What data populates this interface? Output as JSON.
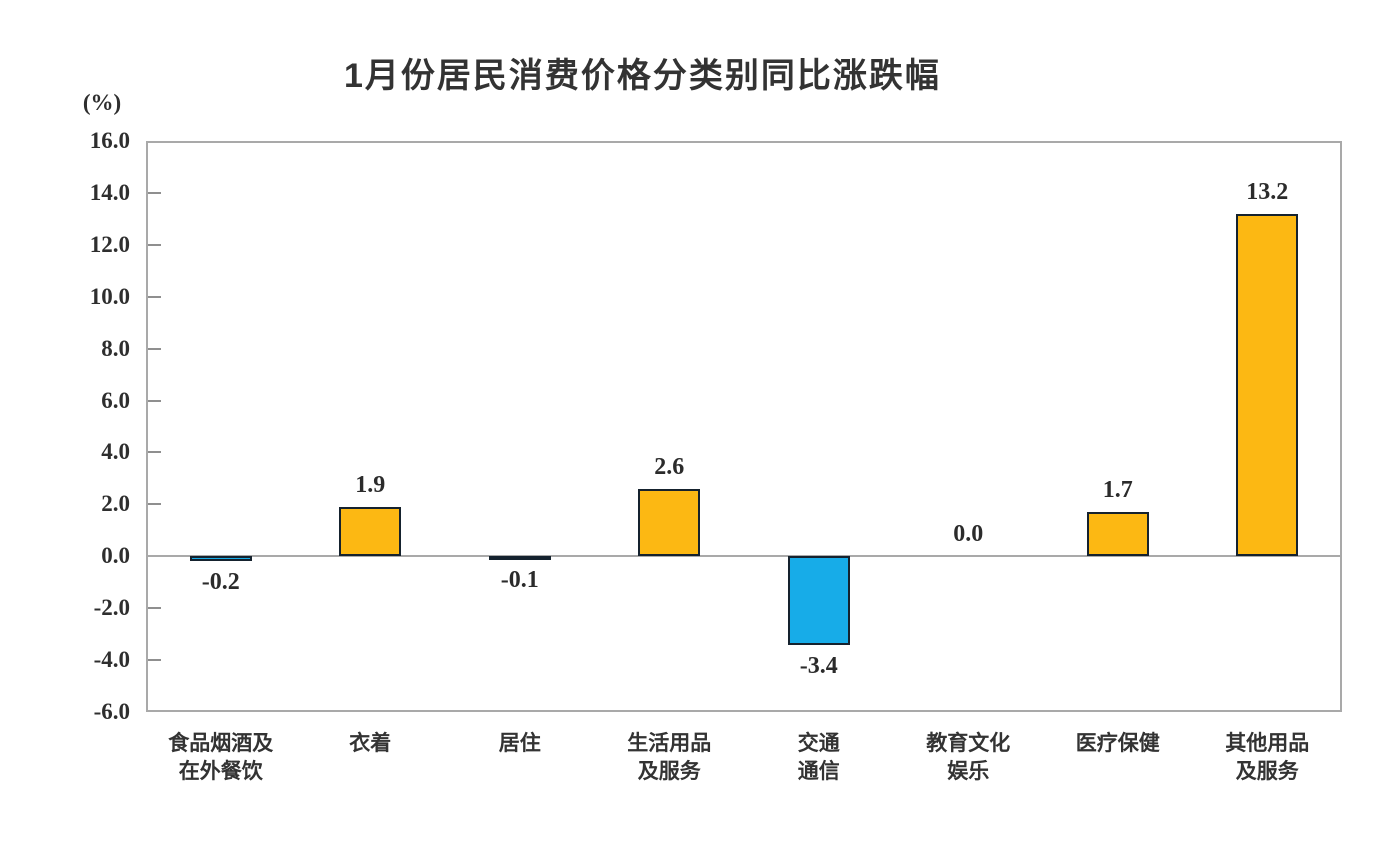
{
  "chart_data": {
    "type": "bar",
    "title": "1月份居民消费价格分类别同比涨跌幅",
    "ylabel": "(%)",
    "xlabel": "",
    "ylim": [
      -6.0,
      16.0
    ],
    "ytick_interval": 2.0,
    "ytick_labels": [
      "16.0",
      "14.0",
      "12.0",
      "10.0",
      "8.0",
      "6.0",
      "4.0",
      "2.0",
      "0.0",
      "-2.0",
      "-4.0",
      "-6.0"
    ],
    "grid": "off",
    "legend": "none",
    "categories": [
      "食品烟酒及在外餐饮",
      "衣着",
      "居住",
      "生活用品及服务",
      "交通通信",
      "教育文化娱乐",
      "医疗保健",
      "其他用品及服务"
    ],
    "category_label_lines": [
      [
        "食品烟酒及",
        "在外餐饮"
      ],
      [
        "衣着"
      ],
      [
        "居住"
      ],
      [
        "生活用品",
        "及服务"
      ],
      [
        "交通",
        "通信"
      ],
      [
        "教育文化",
        "娱乐"
      ],
      [
        "医疗保健"
      ],
      [
        "其他用品",
        "及服务"
      ]
    ],
    "values": [
      -0.2,
      1.9,
      -0.1,
      2.6,
      -3.4,
      0.0,
      1.7,
      13.2
    ],
    "value_labels": [
      "-0.2",
      "1.9",
      "-0.1",
      "2.6",
      "-3.4",
      "0.0",
      "1.7",
      "13.2"
    ],
    "colors": {
      "positive_bar": "#FCB813",
      "negative_bar": "#17ACE8",
      "bar_border": "#15222E",
      "axis": "#A9A9A9",
      "tick": "#8F8F8F",
      "text": "#2B2B2B",
      "title": "#333333"
    },
    "color_rule": "negative values rendered blue, positive values rendered yellow, zero rendered as no bar"
  }
}
